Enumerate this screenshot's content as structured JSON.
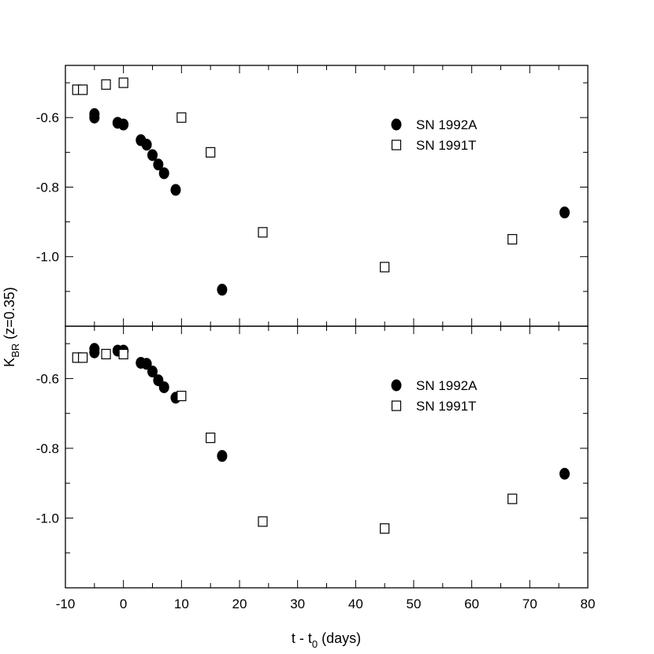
{
  "chart_data": {
    "type": "scatter",
    "ylabel": "K",
    "ylabel_sub": "BR",
    "ylabel_rest": " (z=0.35)",
    "xlabel": "t - t",
    "xlabel_sub": "0",
    "xlabel_rest": " (days)",
    "xlim": [
      -10,
      80
    ],
    "x_ticks": [
      -10,
      0,
      10,
      20,
      30,
      40,
      50,
      60,
      70,
      80
    ],
    "x_tick_labels": [
      "-10",
      "0",
      "10",
      "20",
      "30",
      "40",
      "50",
      "60",
      "70",
      "80"
    ],
    "panels": [
      {
        "ylim": [
          -1.2,
          -0.45
        ],
        "y_ticks": [
          -0.6,
          -0.8,
          -1.0
        ],
        "y_tick_labels": [
          "-0.6",
          "-0.8",
          "-1.0"
        ],
        "legend_position": "top-right",
        "series": [
          {
            "name": "SN 1992A",
            "marker": "filled-circle",
            "x": [
              -5,
              -5,
              -1,
              0,
              3,
              4,
              5,
              6,
              7,
              9,
              17,
              76
            ],
            "y": [
              -0.59,
              -0.6,
              -0.615,
              -0.62,
              -0.665,
              -0.678,
              -0.708,
              -0.735,
              -0.76,
              -0.808,
              -1.095,
              -0.873
            ]
          },
          {
            "name": "SN 1991T",
            "marker": "open-square",
            "x": [
              -8,
              -7,
              -3,
              0,
              10,
              15,
              24,
              45,
              67
            ],
            "y": [
              -0.52,
              -0.52,
              -0.505,
              -0.5,
              -0.6,
              -0.7,
              -0.93,
              -1.03,
              -0.95
            ]
          }
        ]
      },
      {
        "ylim": [
          -1.2,
          -0.45
        ],
        "y_ticks": [
          -0.6,
          -0.8,
          -1.0
        ],
        "y_tick_labels": [
          "-0.6",
          "-0.8",
          "-1.0"
        ],
        "legend_position": "top-right",
        "series": [
          {
            "name": "SN 1992A",
            "marker": "filled-circle",
            "x": [
              -5,
              -5,
              -1,
              0,
              3,
              4,
              5,
              6,
              7,
              9,
              17,
              76
            ],
            "y": [
              -0.515,
              -0.525,
              -0.52,
              -0.52,
              -0.555,
              -0.558,
              -0.58,
              -0.605,
              -0.625,
              -0.655,
              -0.822,
              -0.873
            ]
          },
          {
            "name": "SN 1991T",
            "marker": "open-square",
            "x": [
              -8,
              -7,
              -3,
              0,
              10,
              15,
              24,
              45,
              67
            ],
            "y": [
              -0.54,
              -0.54,
              -0.53,
              -0.53,
              -0.65,
              -0.77,
              -1.01,
              -1.03,
              -0.945
            ]
          }
        ]
      }
    ]
  }
}
